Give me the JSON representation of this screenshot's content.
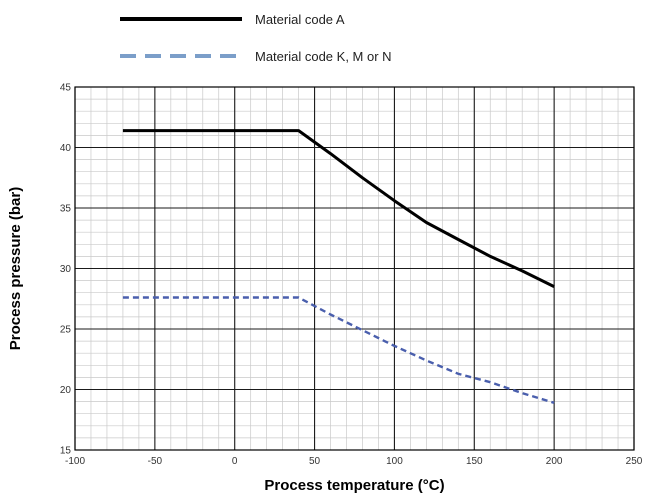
{
  "chart_data": {
    "type": "line",
    "xlabel": "Process temperature (°C)",
    "ylabel": "Process pressure (bar)",
    "xlim": [
      -100,
      250
    ],
    "ylim": [
      15,
      45
    ],
    "x_ticks": [
      -100,
      -50,
      0,
      50,
      100,
      150,
      200,
      250
    ],
    "y_ticks": [
      15,
      20,
      25,
      30,
      35,
      40,
      45
    ],
    "grid": true,
    "legend_position": "top",
    "series": [
      {
        "name": "Material code A",
        "color": "#000000",
        "style": "solid",
        "points": [
          [
            -70,
            41.4
          ],
          [
            40,
            41.4
          ],
          [
            60,
            39.5
          ],
          [
            80,
            37.5
          ],
          [
            100,
            35.6
          ],
          [
            120,
            33.8
          ],
          [
            140,
            32.4
          ],
          [
            160,
            31.0
          ],
          [
            180,
            29.8
          ],
          [
            200,
            28.5
          ]
        ]
      },
      {
        "name": "Material code K, M or N",
        "color": "#4a5fad",
        "legend_color": "#7b9ec9",
        "style": "dashed",
        "points": [
          [
            -70,
            27.6
          ],
          [
            40,
            27.6
          ],
          [
            60,
            26.2
          ],
          [
            80,
            24.9
          ],
          [
            100,
            23.6
          ],
          [
            120,
            22.4
          ],
          [
            140,
            21.3
          ],
          [
            160,
            20.6
          ],
          [
            180,
            19.7
          ],
          [
            200,
            18.9
          ]
        ]
      }
    ]
  }
}
